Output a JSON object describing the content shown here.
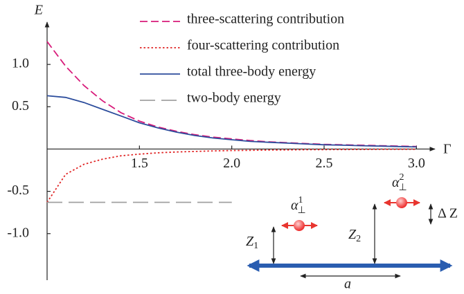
{
  "chart_data": {
    "type": "line",
    "x_label": "Γ",
    "y_label": "E",
    "x": [
      1.0,
      1.1,
      1.2,
      1.3,
      1.4,
      1.5,
      1.6,
      1.7,
      1.8,
      1.9,
      2.0,
      2.1,
      2.2,
      2.3,
      2.4,
      2.5,
      2.6,
      2.7,
      2.8,
      2.9,
      3.0
    ],
    "xlim": [
      1,
      3.1
    ],
    "ylim": [
      -1.55,
      1.5
    ],
    "xticks": [
      1.5,
      {
        "value": 2,
        "label": "2.0"
      },
      2.5,
      {
        "value": 3,
        "label": "3.0"
      }
    ],
    "yticks": [
      {
        "value": 1,
        "label": "1.0"
      },
      0.5,
      -0.5,
      {
        "value": -1,
        "label": "-1.0"
      }
    ],
    "grid": false,
    "series": [
      {
        "name": "three-scattering  contribution",
        "color": "#d81b7a",
        "style": "dashed",
        "values": [
          1.27,
          0.98,
          0.75,
          0.57,
          0.43,
          0.33,
          0.26,
          0.21,
          0.17,
          0.14,
          0.12,
          0.1,
          0.085,
          0.075,
          0.065,
          0.055,
          0.05,
          0.045,
          0.04,
          0.035,
          0.03
        ]
      },
      {
        "name": "four-scattering contribution",
        "color": "#e02424",
        "style": "dotted",
        "values": [
          -0.63,
          -0.3,
          -0.18,
          -0.12,
          -0.08,
          -0.06,
          -0.045,
          -0.035,
          -0.028,
          -0.022,
          -0.018,
          -0.015,
          -0.012,
          -0.01,
          -0.008,
          -0.007,
          -0.006,
          -0.005,
          -0.004,
          -0.003,
          -0.003
        ]
      },
      {
        "name": "total three-body energy",
        "color": "#2b4c9c",
        "style": "solid",
        "values": [
          0.63,
          0.61,
          0.55,
          0.47,
          0.39,
          0.31,
          0.25,
          0.2,
          0.16,
          0.13,
          0.11,
          0.09,
          0.08,
          0.07,
          0.06,
          0.05,
          0.045,
          0.04,
          0.035,
          0.03,
          0.025
        ]
      },
      {
        "name": "two-body energy",
        "color": "#a0a0a0",
        "style": "longdash",
        "values": [
          -0.63,
          -0.63,
          -0.63,
          -0.63,
          -0.63,
          -0.63,
          -0.63,
          -0.63,
          -0.63,
          -0.63,
          -0.63,
          null,
          null,
          null,
          null,
          null,
          null,
          null,
          null,
          null,
          null
        ]
      }
    ]
  },
  "inset": {
    "alpha_1": {
      "symbol": "α",
      "sub": "⊥",
      "sup": "1"
    },
    "alpha_2": {
      "symbol": "α",
      "sub": "⊥",
      "sup": "2"
    },
    "z_1": {
      "symbol": "Z",
      "sub": "1"
    },
    "z_2": {
      "symbol": "Z",
      "sub": "2"
    },
    "delta_z": "Δ Z",
    "a": "a"
  }
}
